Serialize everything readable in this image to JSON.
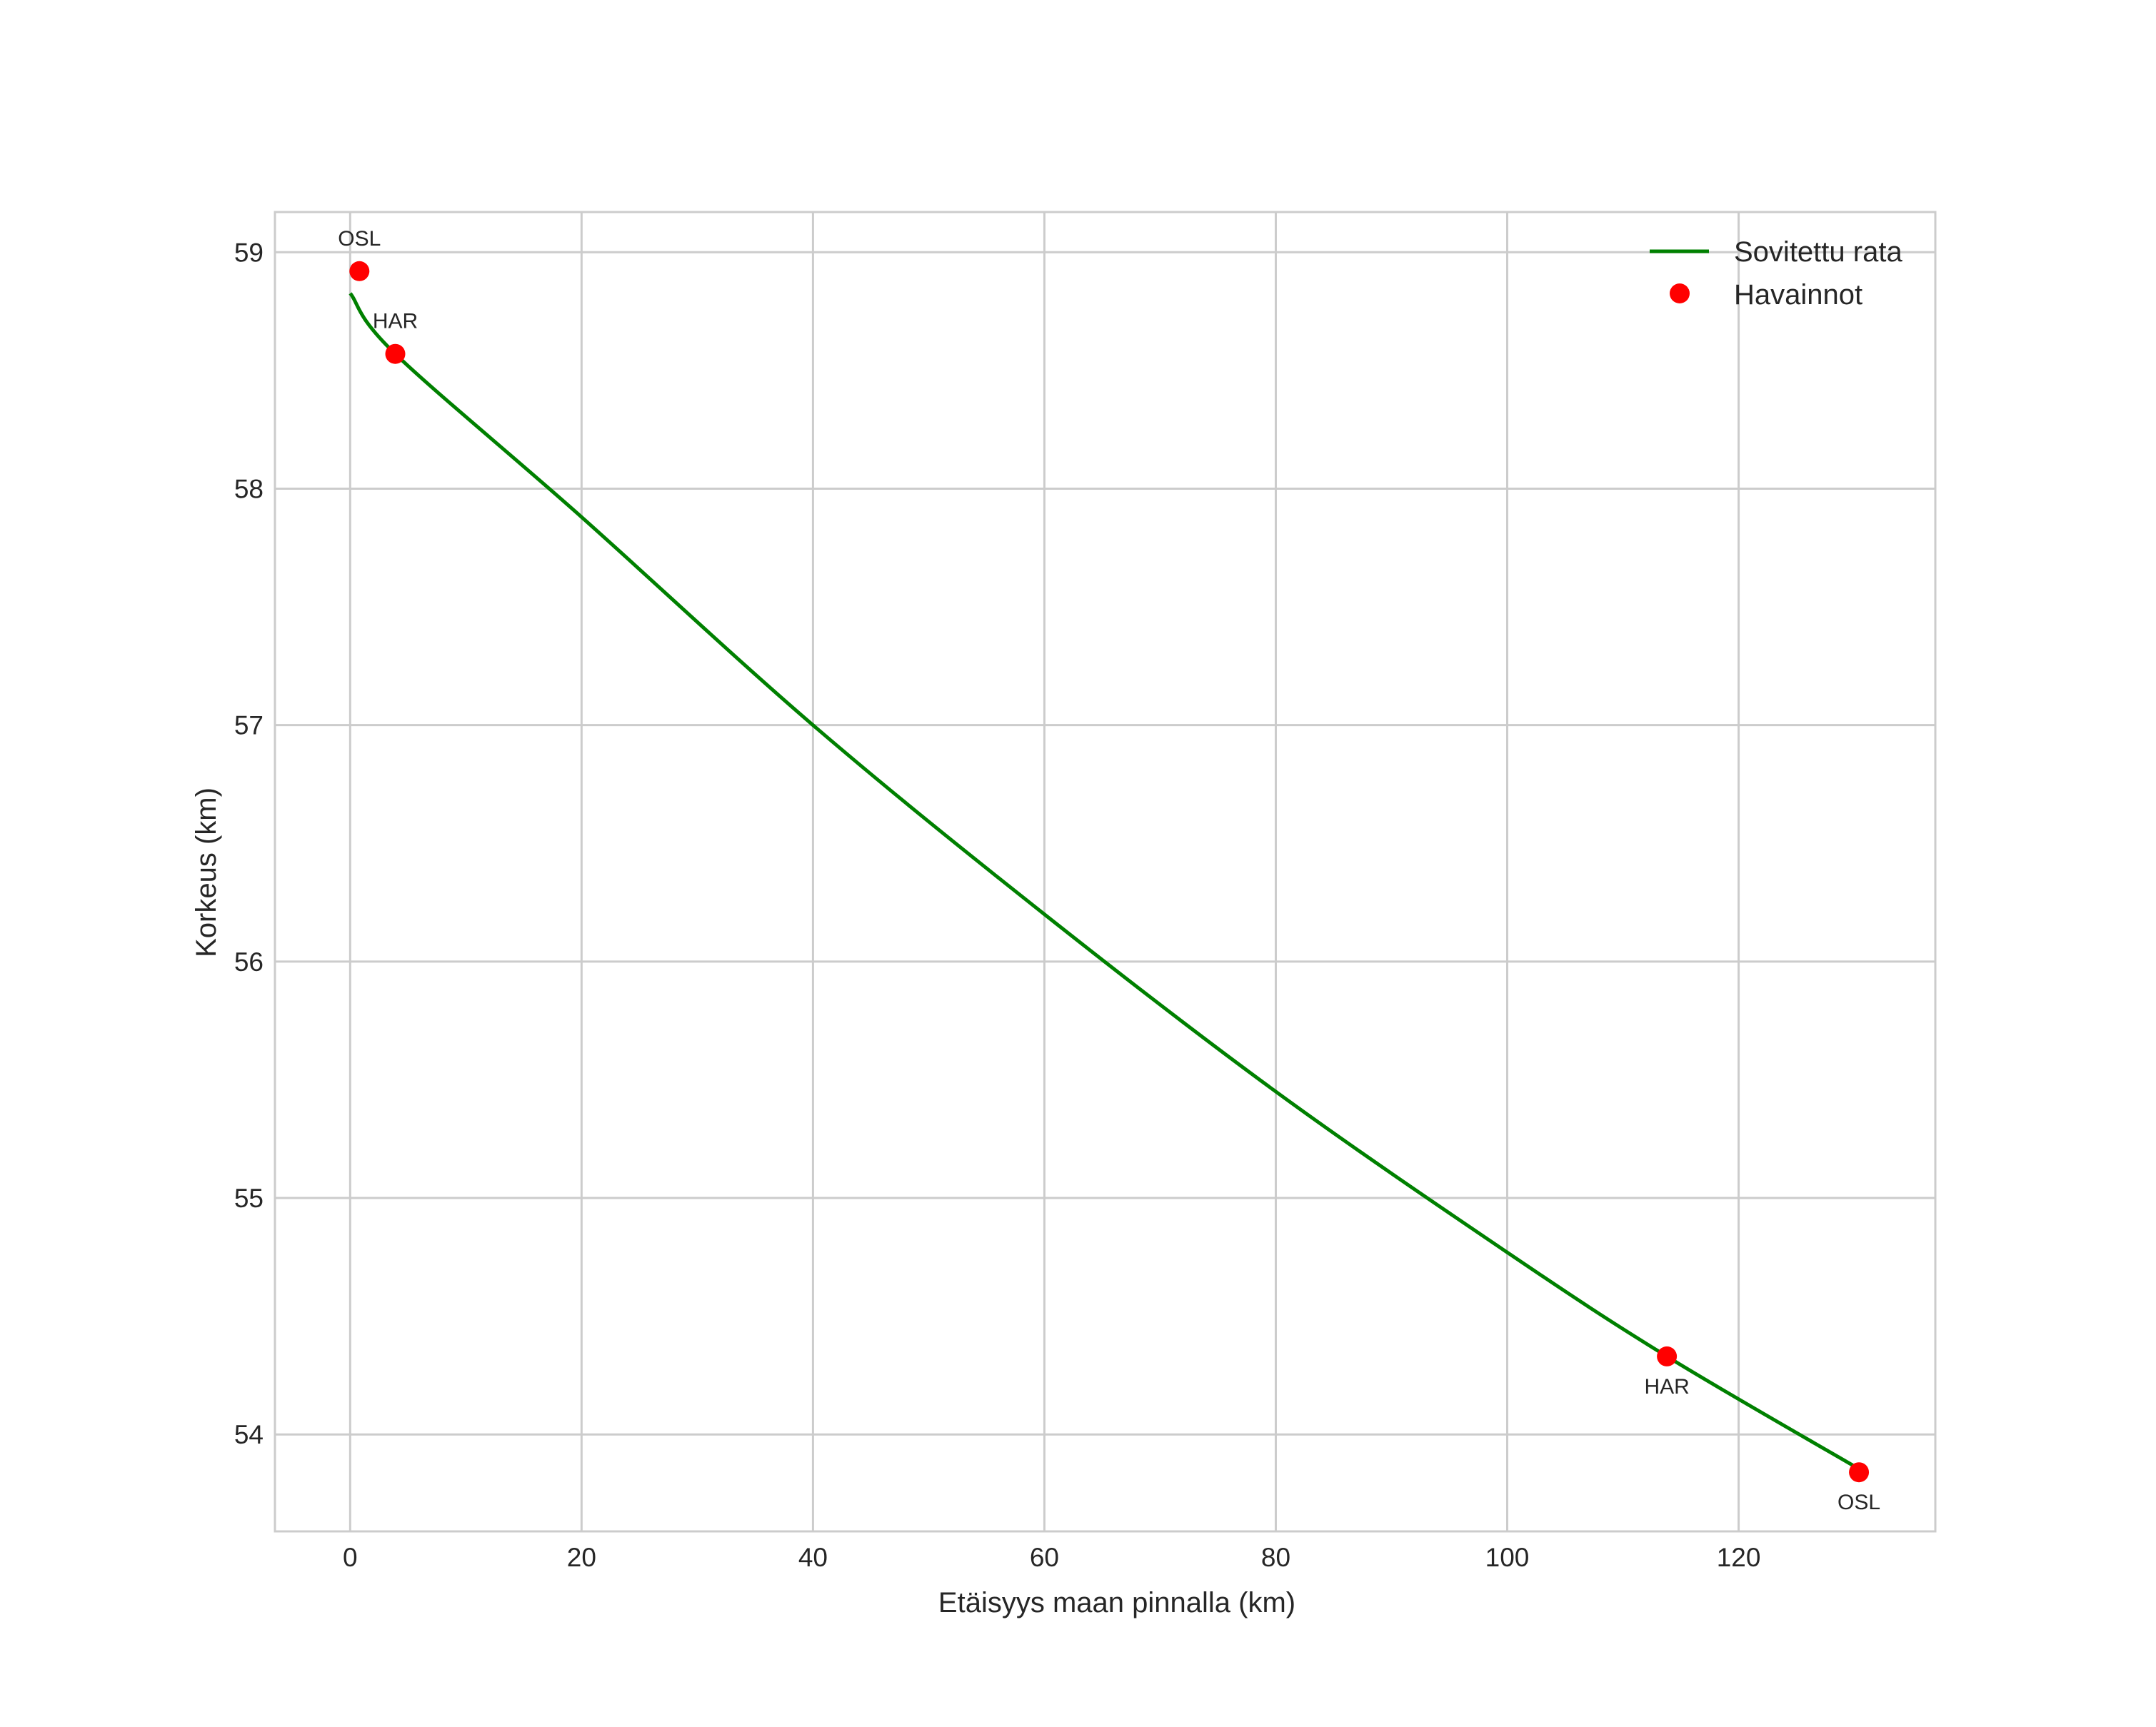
{
  "chart_data": {
    "type": "line",
    "title": "",
    "xlabel": "Etäisyys maan pinnalla (km)",
    "ylabel": "Korkeus (km)",
    "xlim": [
      -6.5,
      137.0
    ],
    "ylim": [
      53.59,
      59.17
    ],
    "xticks": [
      0,
      20,
      40,
      60,
      80,
      100,
      120
    ],
    "yticks": [
      54,
      55,
      56,
      57,
      58,
      59
    ],
    "grid": true,
    "legend_position": "upper right",
    "series": [
      {
        "name": "Sovitettu rata",
        "type": "line",
        "color": "#008000",
        "x": [
          0.1,
          3.9,
          20,
          40,
          60,
          80,
          100,
          113.8,
          130.2
        ],
        "y": [
          58.82,
          58.57,
          57.88,
          57.0,
          56.2,
          55.45,
          54.77,
          54.33,
          53.86
        ]
      },
      {
        "name": "Havainnot",
        "type": "scatter",
        "color": "#ff0000",
        "x": [
          0.8,
          3.9,
          113.8,
          130.4
        ],
        "y": [
          58.92,
          58.57,
          54.33,
          53.84
        ],
        "labels": [
          "OSL",
          "HAR",
          "HAR",
          "OSL"
        ]
      }
    ],
    "annotations": [
      {
        "text": "OSL",
        "x": 0.8,
        "y": 58.92,
        "position": "above"
      },
      {
        "text": "HAR",
        "x": 3.9,
        "y": 58.57,
        "position": "above"
      },
      {
        "text": "HAR",
        "x": 113.8,
        "y": 54.33,
        "position": "below"
      },
      {
        "text": "OSL",
        "x": 130.4,
        "y": 53.84,
        "position": "below"
      }
    ]
  },
  "legend": {
    "items": [
      {
        "label": "Sovitettu rata",
        "marker": "line",
        "color": "#008000"
      },
      {
        "label": "Havainnot",
        "marker": "dot",
        "color": "#ff0000"
      }
    ]
  },
  "style": {
    "grid_color": "#cccccc",
    "frame_color": "#cccccc",
    "text_color": "#262626"
  }
}
